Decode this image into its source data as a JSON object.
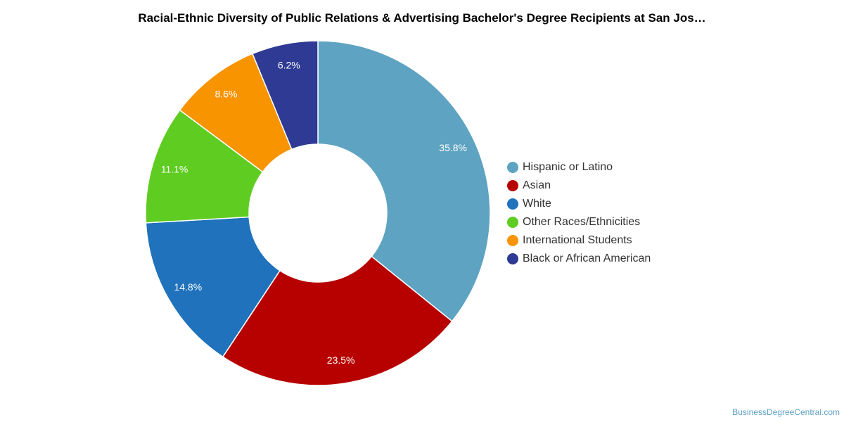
{
  "chart_data": {
    "type": "pie",
    "title": "Racial-Ethnic Diversity of Public Relations & Advertising Bachelor's Degree Recipients at San Jos…",
    "donut": true,
    "legend_position": "right",
    "slices": [
      {
        "name": "Hispanic or Latino",
        "value": 35.8,
        "label": "35.8%",
        "color": "#5ea3c1"
      },
      {
        "name": "Asian",
        "value": 23.5,
        "label": "23.5%",
        "color": "#b70000"
      },
      {
        "name": "White",
        "value": 14.8,
        "label": "14.8%",
        "color": "#1f72bb"
      },
      {
        "name": "Other Races/Ethnicities",
        "value": 11.1,
        "label": "11.1%",
        "color": "#5fcc22"
      },
      {
        "name": "International Students",
        "value": 8.6,
        "label": "8.6%",
        "color": "#f79400"
      },
      {
        "name": "Black or African American",
        "value": 6.2,
        "label": "6.2%",
        "color": "#2e3a93"
      }
    ]
  },
  "watermark": "BusinessDegreeCentral.com"
}
